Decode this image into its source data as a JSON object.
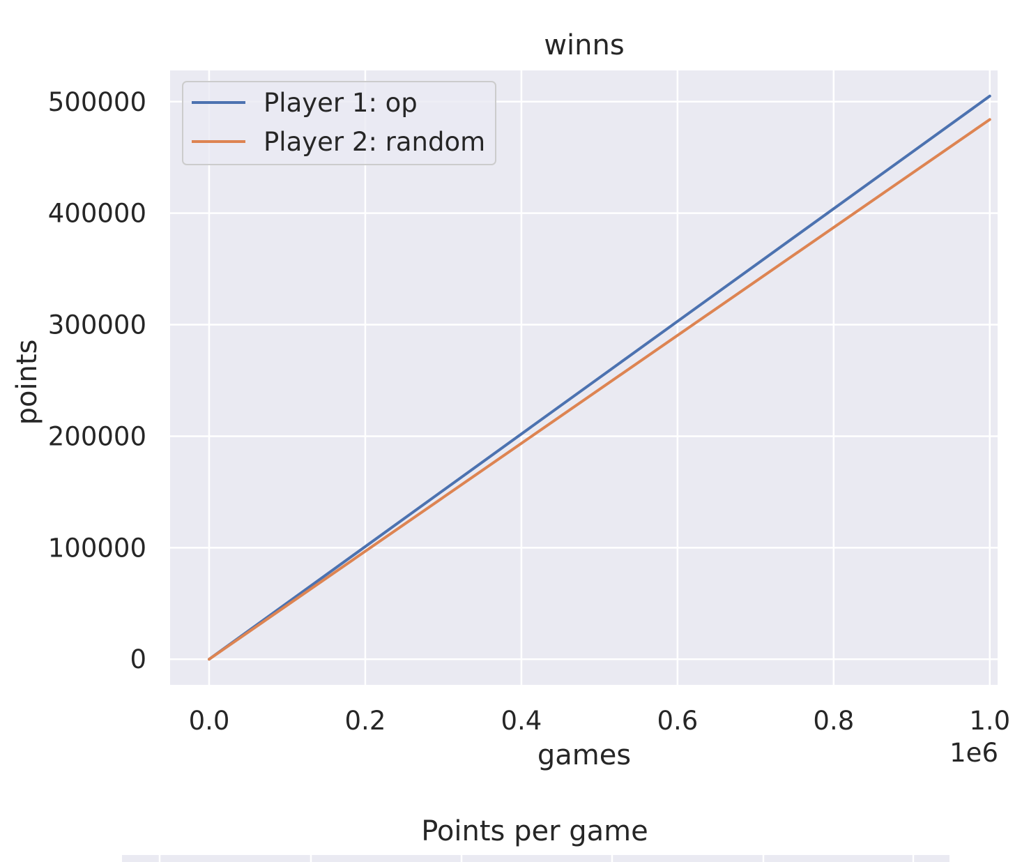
{
  "chart_data": [
    {
      "type": "line",
      "title": "winns",
      "xlabel": "games",
      "ylabel": "points",
      "x_offset_label": "1e6",
      "xlim": [
        -0.05,
        1.01
      ],
      "ylim": [
        -23000,
        528000
      ],
      "x_ticks": [
        0.0,
        0.2,
        0.4,
        0.6,
        0.8,
        1.0
      ],
      "x_tick_labels": [
        "0.0",
        "0.2",
        "0.4",
        "0.6",
        "0.8",
        "1.0"
      ],
      "y_ticks": [
        0,
        100000,
        200000,
        300000,
        400000,
        500000
      ],
      "y_tick_labels": [
        "0",
        "100000",
        "200000",
        "300000",
        "400000",
        "500000"
      ],
      "grid": true,
      "legend_placement": "upper-left",
      "series": [
        {
          "name": "Player 1: op",
          "color": "#4c72b0",
          "x": [
            0.0,
            1.0
          ],
          "y": [
            0,
            505000
          ]
        },
        {
          "name": "Player 2: random",
          "color": "#dd8452",
          "x": [
            0.0,
            1.0
          ],
          "y": [
            0,
            484000
          ]
        }
      ]
    },
    {
      "type": "line",
      "title": "Points per game"
    }
  ]
}
